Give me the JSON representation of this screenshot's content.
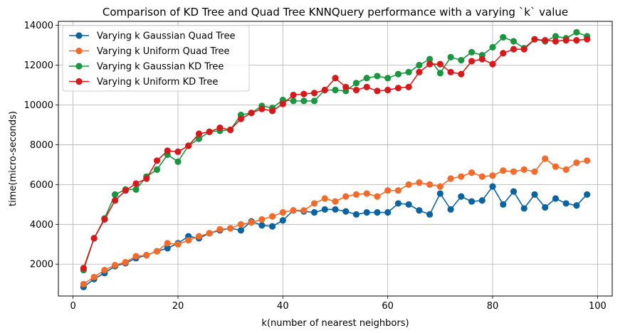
{
  "chart_data": {
    "type": "line",
    "title": "Comparison of KD Tree and Quad Tree KNNQuery performance with a varying `k` value",
    "xlabel": "k(number of nearest neighbors)",
    "ylabel": "time(micro-seconds)",
    "xlim": [
      -2.8,
      102.8
    ],
    "ylim": [
      400,
      14200
    ],
    "xticks": [
      0,
      20,
      40,
      60,
      80,
      100
    ],
    "yticks": [
      2000,
      4000,
      6000,
      8000,
      10000,
      12000,
      14000
    ],
    "xtick_labels": [
      "0",
      "20",
      "40",
      "60",
      "80",
      "100"
    ],
    "ytick_labels": [
      "2000",
      "4000",
      "6000",
      "8000",
      "10000",
      "12000",
      "14000"
    ],
    "grid": true,
    "legend_position": "top-left",
    "x": [
      2,
      4,
      6,
      8,
      10,
      12,
      14,
      16,
      18,
      20,
      22,
      24,
      26,
      28,
      30,
      32,
      34,
      36,
      38,
      40,
      42,
      44,
      46,
      48,
      50,
      52,
      54,
      56,
      58,
      60,
      62,
      64,
      66,
      68,
      70,
      72,
      74,
      76,
      78,
      80,
      82,
      84,
      86,
      88,
      90,
      92,
      94,
      96,
      98
    ],
    "series": [
      {
        "name": "Varying k Gaussian Quad Tree",
        "color": "#0b64a0",
        "values": [
          850,
          1250,
          1550,
          1900,
          2050,
          2300,
          2450,
          2650,
          2800,
          3050,
          3400,
          3300,
          3550,
          3700,
          3800,
          3700,
          4150,
          3950,
          3900,
          4200,
          4700,
          4650,
          4600,
          4750,
          4750,
          4650,
          4500,
          4600,
          4600,
          4600,
          5050,
          5000,
          4700,
          4500,
          5550,
          4750,
          5400,
          5150,
          5200,
          5900,
          5000,
          5650,
          4800,
          5500,
          4850,
          5300,
          5050,
          4950,
          5500
        ]
      },
      {
        "name": "Varying k Uniform Quad Tree",
        "color": "#f26b2a",
        "values": [
          1000,
          1350,
          1700,
          1950,
          2100,
          2400,
          2450,
          2650,
          3050,
          3000,
          3200,
          3400,
          3550,
          3750,
          3800,
          4000,
          4100,
          4250,
          4400,
          4600,
          4700,
          4700,
          5050,
          5300,
          5150,
          5400,
          5500,
          5550,
          5400,
          5700,
          5700,
          6000,
          6100,
          6000,
          5900,
          6300,
          6400,
          6600,
          6400,
          6450,
          6700,
          6650,
          6750,
          6650,
          7300,
          6900,
          6750,
          7100,
          7200
        ]
      },
      {
        "name": "Varying k Gaussian KD Tree",
        "color": "#1a9641",
        "values": [
          1700,
          3300,
          4300,
          5500,
          5750,
          5750,
          6400,
          6750,
          7500,
          7150,
          7950,
          8300,
          8650,
          8700,
          8750,
          9500,
          9600,
          9950,
          9850,
          10250,
          10200,
          10200,
          10200,
          10750,
          10750,
          10700,
          11100,
          11350,
          11450,
          11350,
          11550,
          11650,
          12000,
          12300,
          11600,
          12400,
          12250,
          12650,
          12500,
          12900,
          13400,
          13200,
          12850,
          13300,
          13200,
          13450,
          13350,
          13650,
          13450
        ]
      },
      {
        "name": "Varying k Uniform KD Tree",
        "color": "#d7191c",
        "values": [
          1800,
          3300,
          4250,
          5200,
          5700,
          6050,
          6300,
          7200,
          7700,
          7650,
          7950,
          8550,
          8650,
          8850,
          8750,
          9300,
          9600,
          9800,
          9700,
          10050,
          10500,
          10550,
          10600,
          10750,
          11350,
          10900,
          10750,
          10900,
          10700,
          10750,
          10850,
          10900,
          11650,
          12050,
          12050,
          11650,
          11550,
          12200,
          12300,
          12050,
          12600,
          12800,
          12800,
          13300,
          13250,
          13200,
          13250,
          13250,
          13300
        ]
      }
    ]
  }
}
